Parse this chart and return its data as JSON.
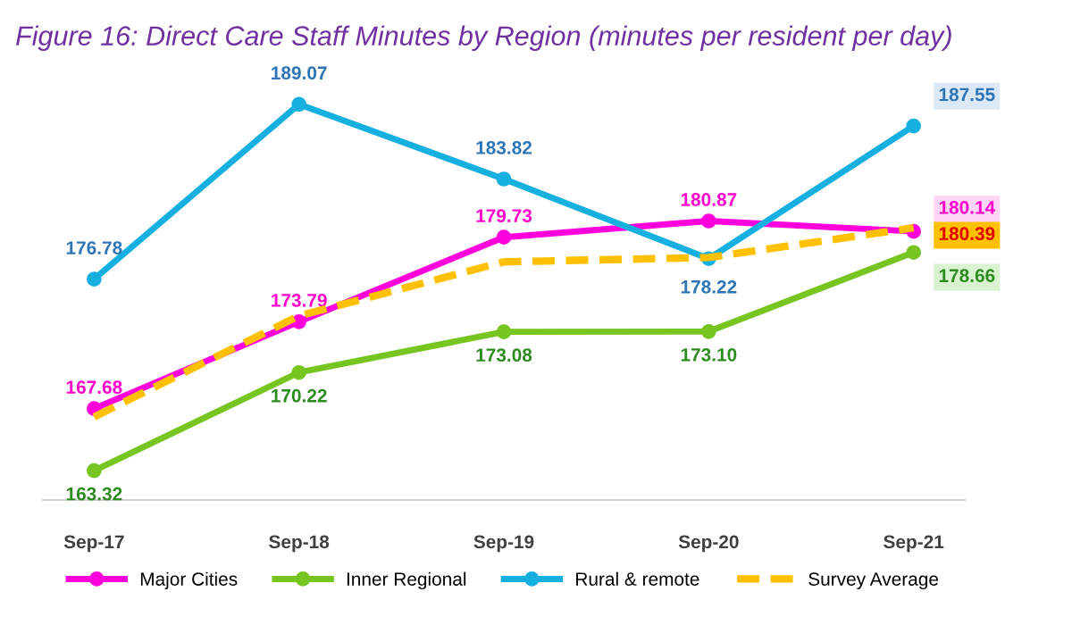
{
  "chart_data": {
    "type": "line",
    "title": "Figure 16: Direct Care Staff Minutes by Region (minutes per resident per day)",
    "categories": [
      "Sep-17",
      "Sep-18",
      "Sep-19",
      "Sep-20",
      "Sep-21"
    ],
    "series": [
      {
        "name": "Major Cities",
        "color": "#ff00dd",
        "marker": "circle",
        "line_style": "solid",
        "values": [
          167.68,
          173.79,
          179.73,
          180.87,
          180.14
        ],
        "value_labels": [
          "167.68",
          "173.79",
          "179.73",
          "180.87",
          "180.14"
        ]
      },
      {
        "name": "Inner Regional",
        "color": "#77c520",
        "marker": "circle",
        "line_style": "solid",
        "values": [
          163.32,
          170.22,
          173.08,
          173.1,
          178.66
        ],
        "value_labels": [
          "163.32",
          "170.22",
          "173.08",
          "173.10",
          "178.66"
        ]
      },
      {
        "name": "Rural & remote",
        "color": "#16b0e0",
        "marker": "circle",
        "line_style": "solid",
        "values": [
          176.78,
          189.07,
          183.82,
          178.22,
          187.55
        ],
        "value_labels": [
          "176.78",
          "189.07",
          "183.82",
          "178.22",
          "187.55"
        ]
      },
      {
        "name": "Survey Average",
        "color": "#ffc000",
        "marker": "none",
        "line_style": "dashed",
        "values": [
          167.1,
          174.2,
          178.0,
          178.3,
          180.39
        ],
        "value_labels": [
          null,
          null,
          null,
          null,
          "180.39"
        ]
      }
    ],
    "grid": false,
    "legend": "bottom"
  }
}
